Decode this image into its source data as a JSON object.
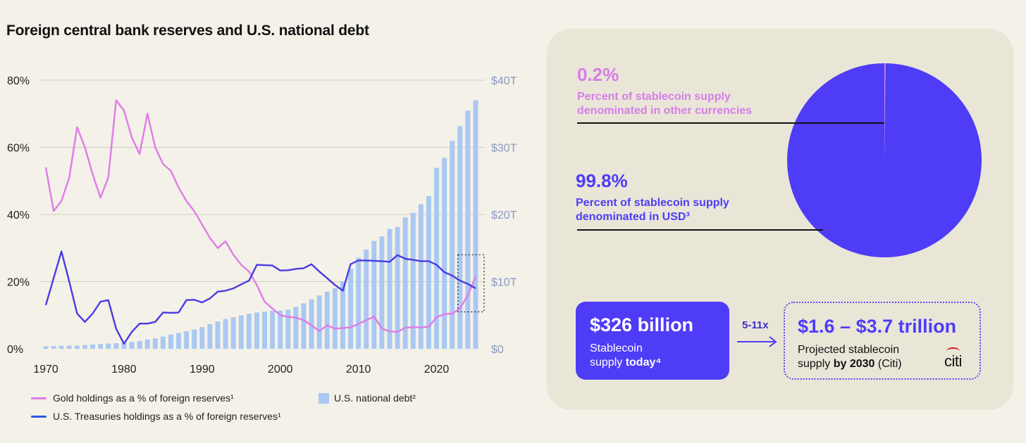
{
  "chart_title": "Foreign central bank reserves and U.S. national debt",
  "chart_data": {
    "type": "bar+line",
    "title": "Foreign central bank reserves and U.S. national debt",
    "x_range": [
      1970,
      2025
    ],
    "x_ticks": [
      "1970",
      "1980",
      "1990",
      "2000",
      "2010",
      "2020"
    ],
    "y_left": {
      "range": [
        0,
        80
      ],
      "ticks": [
        "0%",
        "20%",
        "40%",
        "60%",
        "80%"
      ],
      "unit": "%"
    },
    "y_right": {
      "range": [
        0,
        40
      ],
      "ticks": [
        "$0",
        "$10T",
        "$20T",
        "$30T",
        "$40T"
      ],
      "unit": "$T"
    },
    "bars": {
      "name": "U.S. national debt²",
      "color": "#a9c8f2",
      "years": [
        1970,
        1971,
        1972,
        1973,
        1974,
        1975,
        1976,
        1977,
        1978,
        1979,
        1980,
        1981,
        1982,
        1983,
        1984,
        1985,
        1986,
        1987,
        1988,
        1989,
        1990,
        1991,
        1992,
        1993,
        1994,
        1995,
        1996,
        1997,
        1998,
        1999,
        2000,
        2001,
        2002,
        2003,
        2004,
        2005,
        2006,
        2007,
        2008,
        2009,
        2010,
        2011,
        2012,
        2013,
        2014,
        2015,
        2016,
        2017,
        2018,
        2019,
        2020,
        2021,
        2022,
        2023,
        2024,
        2025
      ],
      "values": [
        0.37,
        0.41,
        0.44,
        0.47,
        0.48,
        0.54,
        0.63,
        0.71,
        0.78,
        0.83,
        0.91,
        1.0,
        1.14,
        1.37,
        1.56,
        1.82,
        2.12,
        2.35,
        2.6,
        2.86,
        3.23,
        3.67,
        4.06,
        4.41,
        4.69,
        4.97,
        5.22,
        5.41,
        5.53,
        5.66,
        5.67,
        5.81,
        6.23,
        6.78,
        7.38,
        7.93,
        8.51,
        9.01,
        10.02,
        11.91,
        13.56,
        14.79,
        16.07,
        16.74,
        17.82,
        18.15,
        19.57,
        20.24,
        21.52,
        22.72,
        26.95,
        28.43,
        30.93,
        33.17,
        35.46,
        37.0
      ]
    },
    "series": [
      {
        "name": "Gold holdings as a % of foreign reserves¹",
        "color": "#e07be8",
        "axis": "left",
        "x": [
          1970,
          1971,
          1972,
          1973,
          1974,
          1975,
          1976,
          1977,
          1978,
          1979,
          1980,
          1981,
          1982,
          1983,
          1984,
          1985,
          1986,
          1987,
          1988,
          1989,
          1990,
          1991,
          1992,
          1993,
          1994,
          1995,
          1996,
          1997,
          1998,
          1999,
          2000,
          2001,
          2002,
          2003,
          2004,
          2005,
          2006,
          2007,
          2008,
          2009,
          2010,
          2011,
          2012,
          2013,
          2014,
          2015,
          2016,
          2017,
          2018,
          2019,
          2020,
          2021,
          2022,
          2023,
          2024,
          2025
        ],
        "y": [
          54,
          41,
          44,
          51,
          66,
          60,
          52,
          45,
          51,
          74,
          71,
          63,
          58,
          70,
          60,
          55,
          53,
          48,
          44,
          41,
          37,
          33,
          30,
          32,
          28,
          25,
          23,
          19,
          14,
          12,
          10,
          9.5,
          9.3,
          8.5,
          7,
          5.3,
          7,
          6,
          6.2,
          6.4,
          7.4,
          8.5,
          9.6,
          6,
          5.2,
          5,
          6.3,
          6.4,
          6.4,
          6.6,
          9.4,
          10.3,
          10.5,
          12,
          16,
          21.5
        ]
      },
      {
        "name": "U.S. Treasuries holdings as a % of foreign reserves¹",
        "color": "#4a3ae3",
        "axis": "left",
        "x": [
          1970,
          1971,
          1972,
          1973,
          1974,
          1975,
          1976,
          1977,
          1978,
          1979,
          1980,
          1981,
          1982,
          1983,
          1984,
          1985,
          1986,
          1987,
          1988,
          1989,
          1990,
          1991,
          1992,
          1993,
          1994,
          1995,
          1996,
          1997,
          1998,
          1999,
          2000,
          2001,
          2002,
          2003,
          2004,
          2005,
          2006,
          2007,
          2008,
          2009,
          2010,
          2011,
          2012,
          2013,
          2014,
          2015,
          2016,
          2017,
          2018,
          2019,
          2020,
          2021,
          2022,
          2023,
          2024,
          2025
        ],
        "y": [
          13,
          21,
          29,
          20,
          10.5,
          8,
          10.5,
          14,
          14.5,
          6,
          1.5,
          5,
          7.5,
          7.5,
          8,
          10.8,
          10.7,
          10.8,
          14.5,
          14.6,
          13.8,
          15,
          17,
          17.3,
          18,
          19.2,
          20.3,
          25,
          24.9,
          24.8,
          23.3,
          23.4,
          23.8,
          24,
          25.2,
          23,
          21,
          19,
          17.3,
          25.2,
          26.3,
          26.3,
          26.2,
          26.1,
          25.9,
          27.9,
          26.8,
          26.5,
          26.1,
          26.1,
          25,
          22.8,
          21.8,
          20.3,
          19.3,
          18
        ]
      }
    ],
    "legend": [
      {
        "label": "Gold holdings as a % of foreign reserves¹",
        "type": "line",
        "color": "#e07be8"
      },
      {
        "label": "U.S. national debt²",
        "type": "bar",
        "color": "#a9c8f2"
      },
      {
        "label": "U.S. Treasuries holdings as a % of foreign reserves¹",
        "type": "line",
        "color": "#4a3ae3"
      }
    ],
    "highlight_years": [
      2023,
      2025
    ],
    "highlight_y_range": [
      11,
      28
    ]
  },
  "pie": {
    "slices": [
      {
        "label": "Other currencies",
        "value": 0.2,
        "color": "#c98be8"
      },
      {
        "label": "USD",
        "value": 99.8,
        "color": "#4f3cf6"
      }
    ]
  },
  "stats": {
    "other": {
      "pct": "0.2%",
      "desc1": "Percent of stablecoin supply",
      "desc2": "denominated in other currencies",
      "color": "#d67de8"
    },
    "usd": {
      "pct": "99.8%",
      "desc1": "Percent of stablecoin supply",
      "desc2": "denominated in USD³",
      "color": "#4f3cf6"
    }
  },
  "today_box": {
    "value": "$326 billion",
    "line1": "Stablecoin",
    "line2_prefix": "supply ",
    "line2_bold": "today⁴"
  },
  "multiplier": "5-11x",
  "projection_box": {
    "value": "$1.6 – $3.7 trillion",
    "line1": "Projected stablecoin",
    "line2_prefix": "supply ",
    "line2_bold": "by 2030",
    "line2_suffix": " (Citi)"
  },
  "logo_text": "citi",
  "colors": {
    "background": "#f3f1e8",
    "panel": "#e9e6d8",
    "accent": "#4f3cf6"
  }
}
